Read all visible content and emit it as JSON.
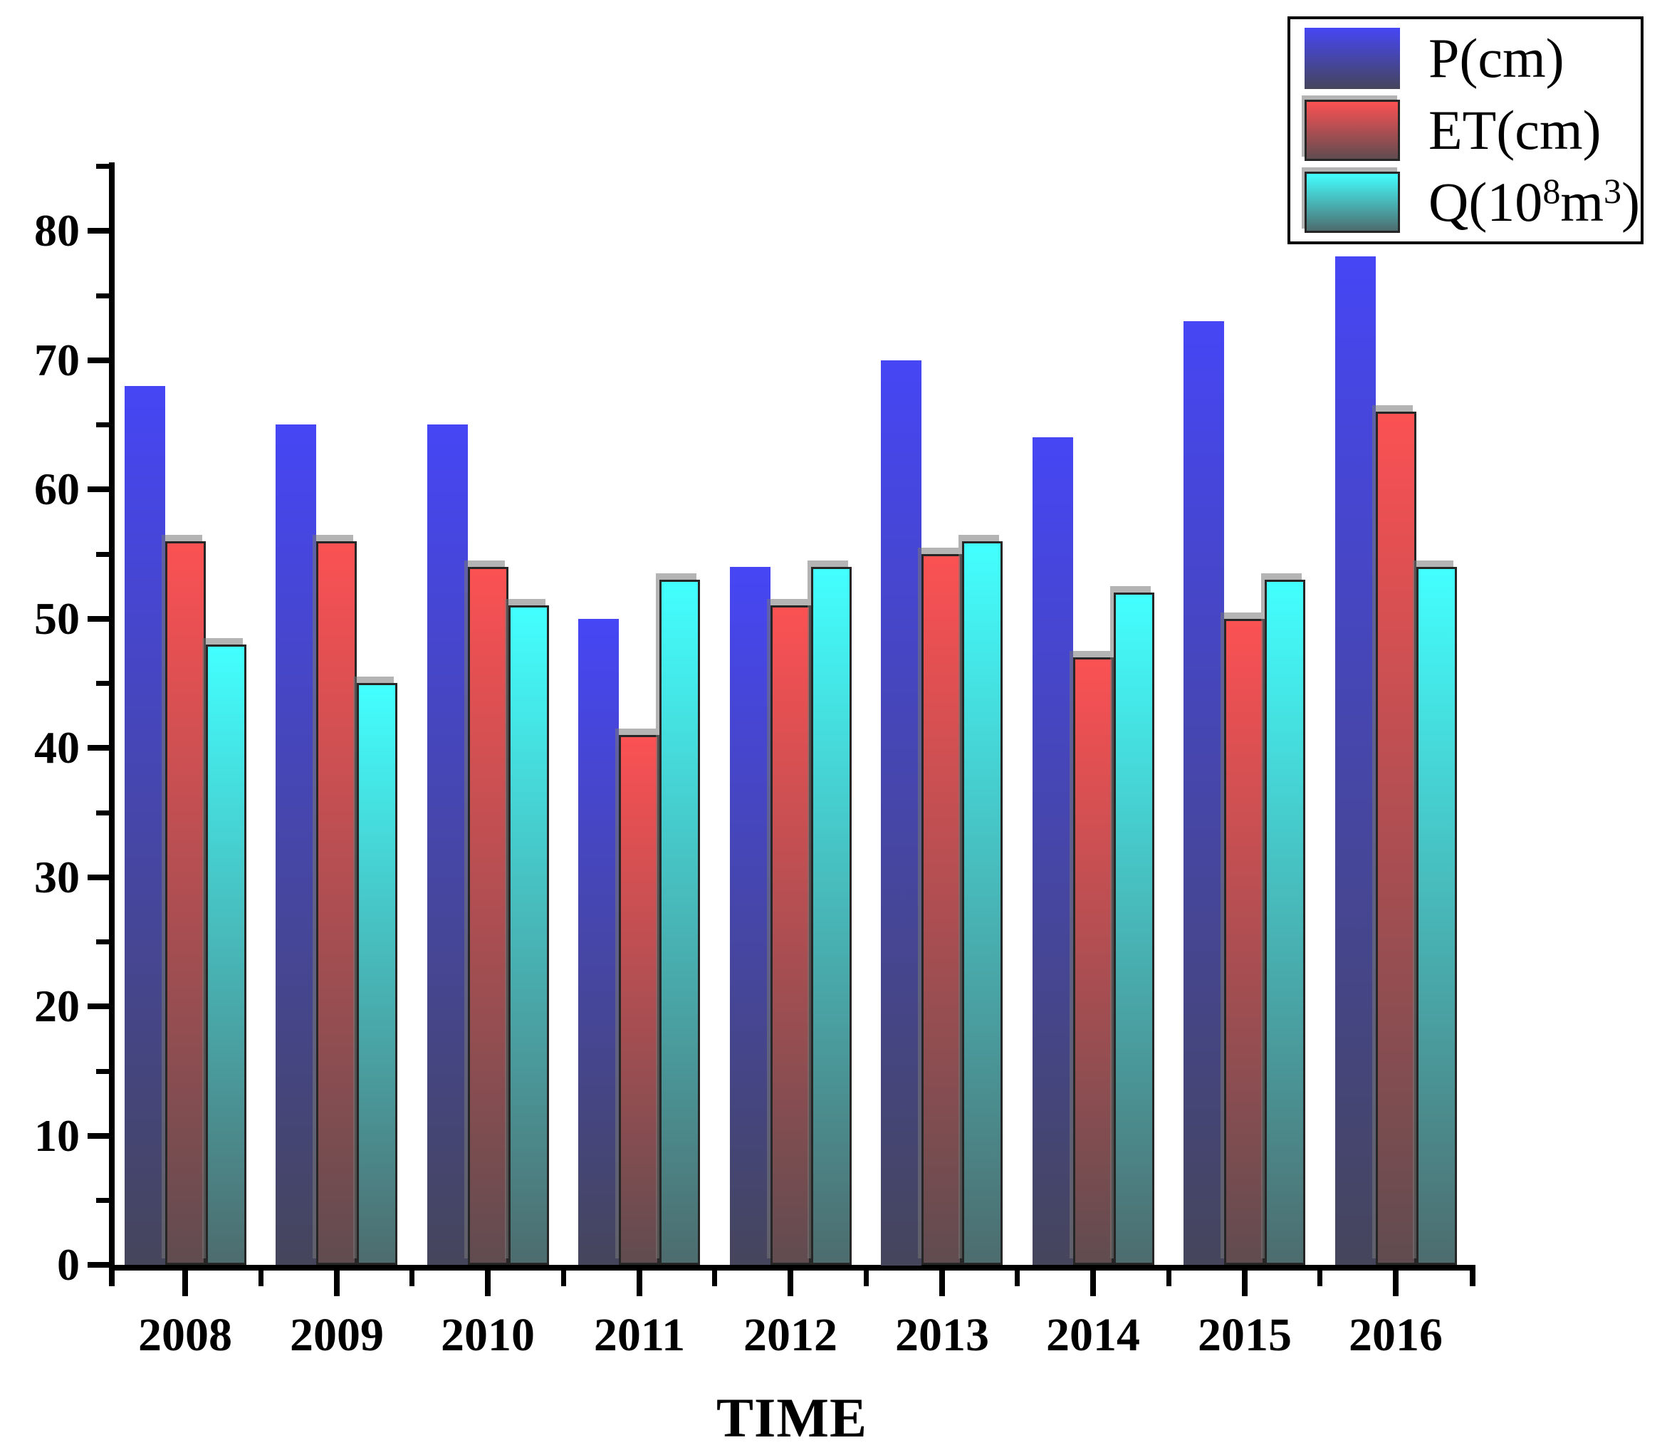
{
  "chart_data": {
    "type": "bar",
    "title": "",
    "xlabel": "TIME",
    "ylabel": "",
    "categories": [
      "2008",
      "2009",
      "2010",
      "2011",
      "2012",
      "2013",
      "2014",
      "2015",
      "2016"
    ],
    "series": [
      {
        "name": "P(cm)",
        "key": "P",
        "values": [
          68,
          65,
          65,
          50,
          54,
          70,
          64,
          73,
          78
        ],
        "color_top": "#4646F5",
        "color_bottom": "#45455C",
        "border": false
      },
      {
        "name": "ET(cm)",
        "key": "ET",
        "values": [
          56,
          56,
          54,
          41,
          51,
          55,
          47,
          50,
          66
        ],
        "color_top": "#FB5153",
        "color_bottom": "#604C50",
        "border": true
      },
      {
        "name": "Q(10^8 m^3)",
        "key": "Q",
        "values": [
          48,
          45,
          51,
          53,
          54,
          56,
          52,
          53,
          54
        ],
        "color_top": "#43FFFF",
        "color_bottom": "#4D6C6E",
        "border": true
      }
    ],
    "ylim": [
      0,
      85
    ],
    "yticks": [
      0,
      10,
      20,
      30,
      40,
      50,
      60,
      70,
      80
    ],
    "y_minor_step": 5,
    "grid": false,
    "legend_position": "top-right",
    "axis_color": "#000000",
    "background_color": "#ffffff"
  },
  "legend": {
    "items": [
      {
        "label_parts": [
          {
            "t": "P(cm)"
          }
        ]
      },
      {
        "label_parts": [
          {
            "t": "ET(cm)"
          }
        ]
      },
      {
        "label_parts": [
          {
            "t": "Q(10"
          },
          {
            "t": "8",
            "sup": true
          },
          {
            "t": "m"
          },
          {
            "t": "3",
            "sup": true
          },
          {
            "t": ")"
          }
        ]
      }
    ]
  }
}
